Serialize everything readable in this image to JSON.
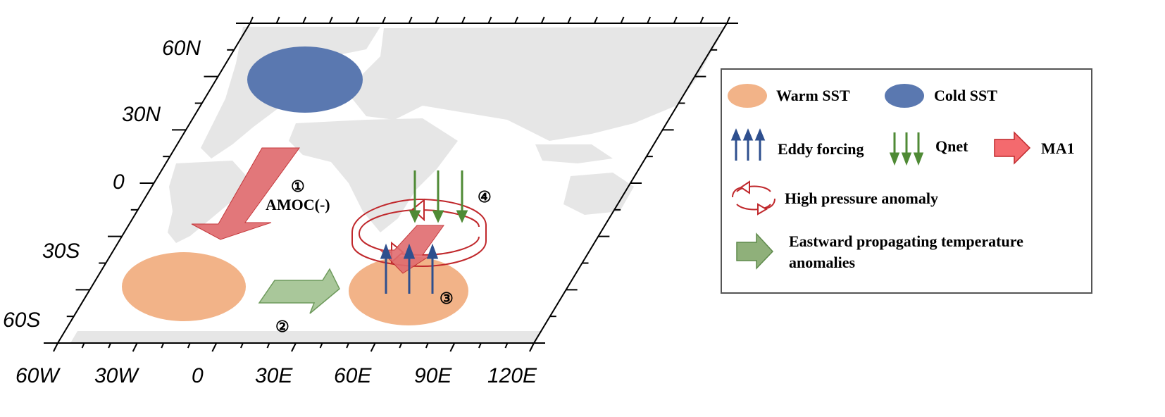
{
  "map": {
    "lat_labels": [
      "60N",
      "30N",
      "0",
      "30S",
      "60S"
    ],
    "lon_labels": [
      "60W",
      "30W",
      "0",
      "30E",
      "60E",
      "90E",
      "120E"
    ]
  },
  "annotations": {
    "step1": "①",
    "step2": "②",
    "step3": "③",
    "step4": "④",
    "amoc": "AMOC(-)"
  },
  "legend": {
    "warm_sst": "Warm SST",
    "cold_sst": "Cold SST",
    "eddy_forcing": "Eddy forcing",
    "qnet": "Qnet",
    "ma1": "MA1",
    "high_pressure": "High pressure anomaly",
    "eastward_line1": "Eastward propagating temperature",
    "eastward_line2": "anomalies"
  },
  "colors": {
    "warm": "#F2B388",
    "cold": "#5A78B0",
    "amoc_arrow": "#E06C6F",
    "eastward_arrow": "#A9C79A",
    "eddy_arrow": "#2E4F8E",
    "qnet_arrow": "#4F8A35",
    "high_pressure": "#C0282C",
    "land": "#E6E6E6"
  }
}
